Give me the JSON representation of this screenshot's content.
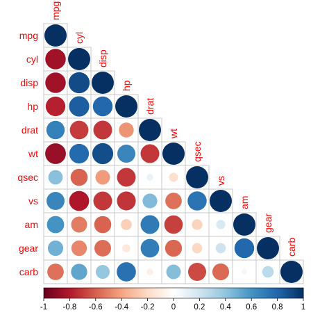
{
  "chart_data": {
    "type": "heatmap",
    "style": "lower-triangle correlation circles",
    "variables": [
      "mpg",
      "cyl",
      "disp",
      "hp",
      "drat",
      "wt",
      "qsec",
      "vs",
      "am",
      "gear",
      "carb"
    ],
    "correlations": [
      [
        1.0
      ],
      [
        -0.85,
        1.0
      ],
      [
        -0.85,
        0.9,
        1.0
      ],
      [
        -0.78,
        0.83,
        0.79,
        1.0
      ],
      [
        0.68,
        -0.7,
        -0.71,
        -0.45,
        1.0
      ],
      [
        -0.87,
        0.78,
        0.89,
        0.66,
        -0.71,
        1.0
      ],
      [
        0.42,
        -0.59,
        -0.43,
        -0.71,
        0.09,
        -0.17,
        1.0
      ],
      [
        0.66,
        -0.81,
        -0.71,
        -0.72,
        0.44,
        -0.55,
        0.74,
        1.0
      ],
      [
        0.6,
        -0.52,
        -0.59,
        -0.24,
        0.71,
        -0.69,
        -0.23,
        0.17,
        1.0
      ],
      [
        0.48,
        -0.49,
        -0.56,
        -0.13,
        0.7,
        -0.58,
        -0.21,
        0.21,
        0.79,
        1.0
      ],
      [
        -0.55,
        0.53,
        0.39,
        0.75,
        -0.09,
        0.43,
        -0.66,
        -0.57,
        0.06,
        0.27,
        1.0
      ]
    ],
    "colorbar": {
      "range": [
        -1,
        1
      ],
      "ticks": [
        "-1",
        "-0.8",
        "-0.6",
        "-0.4",
        "-0.2",
        "0",
        "0.2",
        "0.4",
        "0.6",
        "0.8",
        "1"
      ],
      "placement": "bottom"
    },
    "colors": {
      "negative_end": "#67001F",
      "positive_end": "#053061",
      "label": "#FF0000",
      "grid": "#C8C8C8"
    }
  }
}
